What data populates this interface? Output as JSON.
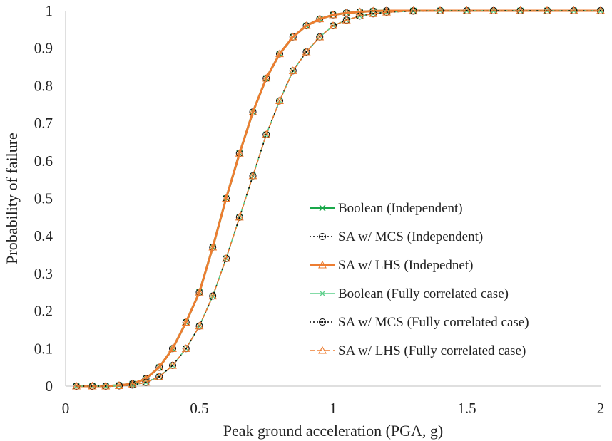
{
  "chart_data": {
    "type": "scatter",
    "title": "",
    "xlabel": "Peak ground acceleration (PGA, g)",
    "ylabel": "Probability of failure",
    "xlim": [
      0,
      2
    ],
    "ylim": [
      0,
      1
    ],
    "xticks": [
      "0",
      "0.5",
      "1",
      "1.5",
      "2"
    ],
    "yticks": [
      "0",
      "0.1",
      "0.2",
      "0.3",
      "0.4",
      "0.5",
      "0.6",
      "0.7",
      "0.8",
      "0.9",
      "1"
    ],
    "grid": false,
    "legend_position": "right-middle",
    "x": [
      0.04,
      0.1,
      0.15,
      0.2,
      0.25,
      0.3,
      0.35,
      0.4,
      0.45,
      0.5,
      0.55,
      0.6,
      0.65,
      0.7,
      0.75,
      0.8,
      0.85,
      0.9,
      0.95,
      1.0,
      1.05,
      1.1,
      1.15,
      1.2,
      1.3,
      1.4,
      1.5,
      1.6,
      1.7,
      1.8,
      1.9,
      2.0
    ],
    "series": [
      {
        "name": "Boolean (Independent)",
        "color": "#1aa84a",
        "marker": "x",
        "line": "solid",
        "values": [
          0.0,
          0.0,
          0.0,
          0.002,
          0.006,
          0.02,
          0.05,
          0.1,
          0.17,
          0.25,
          0.37,
          0.5,
          0.62,
          0.73,
          0.82,
          0.885,
          0.93,
          0.96,
          0.978,
          0.989,
          0.994,
          0.997,
          0.999,
          1.0,
          1.0,
          1.0,
          1.0,
          1.0,
          1.0,
          1.0,
          1.0,
          1.0
        ]
      },
      {
        "name": "SA w/ MCS (Independent)",
        "color": "#000000",
        "marker": "circle-dot",
        "line": "dotted",
        "values": [
          0.0,
          0.0,
          0.0,
          0.002,
          0.006,
          0.02,
          0.05,
          0.1,
          0.17,
          0.25,
          0.37,
          0.5,
          0.62,
          0.73,
          0.82,
          0.885,
          0.93,
          0.96,
          0.978,
          0.989,
          0.994,
          0.997,
          0.999,
          1.0,
          1.0,
          1.0,
          1.0,
          1.0,
          1.0,
          1.0,
          1.0,
          1.0
        ]
      },
      {
        "name": "SA w/ LHS (Indepednet)",
        "color": "#ed7d31",
        "marker": "triangle",
        "line": "solid",
        "values": [
          0.0,
          0.0,
          0.0,
          0.002,
          0.006,
          0.02,
          0.05,
          0.1,
          0.17,
          0.25,
          0.37,
          0.5,
          0.62,
          0.73,
          0.82,
          0.885,
          0.93,
          0.96,
          0.978,
          0.989,
          0.994,
          0.997,
          0.999,
          1.0,
          1.0,
          1.0,
          1.0,
          1.0,
          1.0,
          1.0,
          1.0,
          1.0
        ]
      },
      {
        "name": "Boolean (Fully correlated case)",
        "color": "#5ccf8a",
        "marker": "x",
        "line": "solid",
        "values": [
          0.0,
          0.0,
          0.0,
          0.001,
          0.003,
          0.01,
          0.025,
          0.055,
          0.1,
          0.16,
          0.24,
          0.34,
          0.45,
          0.56,
          0.67,
          0.76,
          0.84,
          0.89,
          0.93,
          0.96,
          0.975,
          0.986,
          0.992,
          0.996,
          0.999,
          1.0,
          1.0,
          1.0,
          1.0,
          1.0,
          1.0,
          1.0
        ]
      },
      {
        "name": "SA w/ MCS (Fully correlated case)",
        "color": "#000000",
        "marker": "circle-dot",
        "line": "dotted",
        "values": [
          0.0,
          0.0,
          0.0,
          0.001,
          0.003,
          0.01,
          0.025,
          0.055,
          0.1,
          0.16,
          0.24,
          0.34,
          0.45,
          0.56,
          0.67,
          0.76,
          0.84,
          0.89,
          0.93,
          0.96,
          0.975,
          0.986,
          0.992,
          0.996,
          0.999,
          1.0,
          1.0,
          1.0,
          1.0,
          1.0,
          1.0,
          1.0
        ]
      },
      {
        "name": "SA w/ LHS (Fully correlated case)",
        "color": "#ed7d31",
        "marker": "triangle",
        "line": "dashed",
        "values": [
          0.0,
          0.0,
          0.0,
          0.001,
          0.003,
          0.01,
          0.025,
          0.055,
          0.1,
          0.16,
          0.24,
          0.34,
          0.45,
          0.56,
          0.67,
          0.76,
          0.84,
          0.89,
          0.93,
          0.96,
          0.975,
          0.986,
          0.992,
          0.996,
          0.999,
          1.0,
          1.0,
          1.0,
          1.0,
          1.0,
          1.0,
          1.0
        ]
      }
    ]
  }
}
